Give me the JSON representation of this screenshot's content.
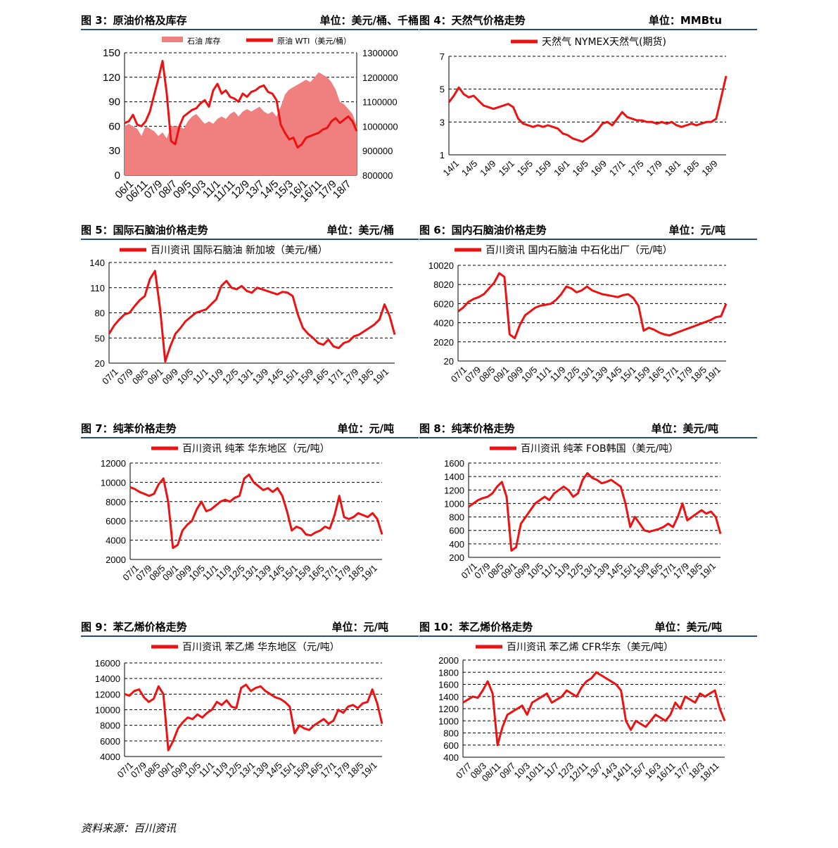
{
  "colors": {
    "series": "#ee1111",
    "area": "#f08080",
    "rule": "#1f4e79",
    "grid": "#000000"
  },
  "source_note": "资料来源：百川资讯",
  "panels": [
    {
      "title": "图 3：原油价格及库存",
      "unit": "单位：美元/桶、千桶"
    },
    {
      "title": "图 4：天然气价格走势",
      "unit": "单位：MMBtu"
    },
    {
      "title": "图 5：国际石脑油价格走势",
      "unit": "单位：美元/桶"
    },
    {
      "title": "图 6：国内石脑油价格走势",
      "unit": "单位：元/吨"
    },
    {
      "title": "图 7：纯苯价格走势",
      "unit": "单位：元/吨"
    },
    {
      "title": "图 8：纯苯价格走势",
      "unit": "单位：美元/吨"
    },
    {
      "title": "图 9：苯乙烯价格走势",
      "unit": "单位：元/吨"
    },
    {
      "title": "图 10：苯乙烯价格走势",
      "unit": "单位：美元/吨"
    }
  ],
  "chart_data": [
    {
      "type": "line",
      "panel": 0,
      "dual_axis": true,
      "grid": true,
      "legend_position": "top",
      "series": [
        {
          "name": "石油 库存",
          "type": "area",
          "axis": "right",
          "values": [
            1000000,
            1010000,
            1000000,
            990000,
            960000,
            1000000,
            990000,
            980000,
            960000,
            975000,
            950000,
            1000000,
            1000000,
            1000000,
            990000,
            1020000,
            1040000,
            1050000,
            1030000,
            1010000,
            1020000,
            1010000,
            1030000,
            1040000,
            1030000,
            1050000,
            1060000,
            1040000,
            1060000,
            1070000,
            1060000,
            1070000,
            1080000,
            1060000,
            1050000,
            1060000,
            1040000,
            1080000,
            1130000,
            1150000,
            1160000,
            1170000,
            1180000,
            1190000,
            1180000,
            1200000,
            1220000,
            1210000,
            1200000,
            1180000,
            1150000,
            1100000,
            1090000,
            1070000,
            1050000,
            1000000
          ]
        },
        {
          "name": "原油 WTI（美元/桶）",
          "type": "line",
          "axis": "left",
          "values": [
            64,
            66,
            74,
            62,
            60,
            66,
            78,
            98,
            118,
            140,
            100,
            42,
            38,
            60,
            72,
            76,
            80,
            82,
            88,
            92,
            84,
            104,
            112,
            100,
            104,
            96,
            94,
            90,
            100,
            96,
            102,
            104,
            108,
            110,
            102,
            100,
            92,
            62,
            52,
            44,
            46,
            34,
            38,
            46,
            48,
            50,
            52,
            56,
            58,
            66,
            70,
            64,
            68,
            72,
            66,
            54
          ]
        }
      ],
      "x_ticks": [
        "06/1",
        "06/11",
        "07/9",
        "08/7",
        "09/5",
        "10/3",
        "11/1",
        "11/11",
        "12/9",
        "13/7",
        "14/5",
        "15/3",
        "16/1",
        "16/11",
        "17/9",
        "18/7"
      ],
      "y_left": {
        "min": 0,
        "max": 150,
        "ticks": [
          "0",
          "30",
          "60",
          "90",
          "120",
          "150"
        ]
      },
      "y_right": {
        "min": 800000,
        "max": 1300000,
        "ticks": [
          "800000",
          "900000",
          "1000000",
          "1100000",
          "1200000",
          "1300000"
        ]
      }
    },
    {
      "type": "line",
      "panel": 1,
      "grid": true,
      "legend_position": "top",
      "series": [
        {
          "name": "天然气 NYMEX天然气(期货)",
          "values": [
            4.2,
            4.6,
            5.1,
            4.7,
            4.5,
            4.6,
            4.3,
            4.0,
            3.9,
            3.8,
            3.9,
            4.0,
            4.1,
            3.9,
            3.2,
            2.9,
            2.8,
            2.7,
            2.8,
            2.7,
            2.8,
            2.7,
            2.6,
            2.3,
            2.2,
            2.0,
            1.9,
            1.8,
            2.0,
            2.2,
            2.5,
            2.9,
            3.0,
            2.8,
            3.2,
            3.6,
            3.3,
            3.2,
            3.1,
            3.1,
            3.0,
            3.0,
            2.9,
            3.0,
            2.9,
            3.0,
            2.8,
            2.7,
            2.8,
            2.9,
            2.8,
            2.9,
            3.0,
            3.0,
            3.2,
            4.5,
            5.8
          ]
        }
      ],
      "x_ticks": [
        "14/1",
        "14/5",
        "14/9",
        "15/1",
        "15/5",
        "15/9",
        "16/1",
        "16/5",
        "16/9",
        "17/1",
        "17/5",
        "17/9",
        "18/1",
        "18/5",
        "18/9"
      ],
      "y": {
        "min": 1,
        "max": 7,
        "ticks": [
          "1",
          "3",
          "5",
          "7"
        ]
      }
    },
    {
      "type": "line",
      "panel": 2,
      "grid": true,
      "legend_position": "top",
      "series": [
        {
          "name": "百川资讯 国际石脑油 新加坡（美元/桶）",
          "values": [
            55,
            65,
            72,
            78,
            80,
            88,
            95,
            100,
            120,
            130,
            85,
            22,
            40,
            55,
            62,
            70,
            75,
            80,
            82,
            84,
            90,
            96,
            112,
            118,
            110,
            108,
            112,
            106,
            104,
            110,
            108,
            106,
            104,
            102,
            105,
            104,
            100,
            78,
            62,
            55,
            50,
            44,
            42,
            48,
            40,
            38,
            44,
            46,
            52,
            54,
            58,
            62,
            66,
            72,
            90,
            76,
            54
          ]
        }
      ],
      "x_ticks": [
        "07/1",
        "07/9",
        "08/5",
        "09/1",
        "09/9",
        "10/5",
        "11/1",
        "11/9",
        "12/5",
        "13/1",
        "13/9",
        "14/5",
        "15/1",
        "15/9",
        "16/5",
        "17/1",
        "17/9",
        "18/5",
        "19/1"
      ],
      "y": {
        "min": 20,
        "max": 140,
        "ticks": [
          "20",
          "50",
          "80",
          "110",
          "140"
        ]
      }
    },
    {
      "type": "line",
      "panel": 3,
      "grid": true,
      "legend_position": "top",
      "series": [
        {
          "name": "百川资讯 国内石脑油 中石化出厂（元/吨）",
          "values": [
            5200,
            5600,
            6200,
            6500,
            6700,
            7000,
            7600,
            8200,
            9200,
            8800,
            2800,
            2400,
            3800,
            4800,
            5200,
            5600,
            5800,
            5900,
            6000,
            6400,
            7000,
            7800,
            7600,
            7200,
            7400,
            7800,
            7400,
            7200,
            7000,
            6900,
            6800,
            6700,
            6900,
            7000,
            6600,
            5800,
            3200,
            3500,
            3300,
            3000,
            2800,
            2700,
            2900,
            3100,
            3300,
            3500,
            3700,
            3900,
            4100,
            4300,
            4600,
            4700,
            6000
          ]
        }
      ],
      "x_ticks": [
        "07/1",
        "07/9",
        "08/5",
        "09/1",
        "09/9",
        "10/5",
        "11/1",
        "11/9",
        "12/5",
        "13/1",
        "13/9",
        "14/5",
        "15/1",
        "15/9",
        "16/5",
        "17/1",
        "17/9",
        "18/5",
        "19/1"
      ],
      "y": {
        "min": 20,
        "max": 10020,
        "ticks": [
          "20",
          "2020",
          "4020",
          "6020",
          "8020",
          "10020"
        ]
      }
    },
    {
      "type": "line",
      "panel": 4,
      "grid": true,
      "legend_position": "top",
      "series": [
        {
          "name": "百川资讯 纯苯 华东地区（元/吨）",
          "values": [
            9500,
            9300,
            9000,
            8800,
            8600,
            8800,
            9800,
            10400,
            8000,
            3200,
            3500,
            5000,
            5600,
            6000,
            7200,
            8000,
            7000,
            7200,
            7600,
            8000,
            8200,
            8000,
            8400,
            8600,
            10400,
            10800,
            10000,
            9600,
            9200,
            9400,
            9000,
            9400,
            8600,
            7000,
            5000,
            5400,
            5200,
            4600,
            4500,
            4800,
            5000,
            5400,
            5200,
            6600,
            8600,
            6400,
            6200,
            6400,
            6800,
            6600,
            6400,
            6800,
            6200,
            4600
          ]
        }
      ],
      "x_ticks": [
        "07/1",
        "07/9",
        "08/5",
        "09/1",
        "09/9",
        "10/5",
        "11/1",
        "11/9",
        "12/5",
        "13/1",
        "13/9",
        "14/5",
        "15/1",
        "15/9",
        "16/5",
        "17/1",
        "17/9",
        "18/5",
        "19/1"
      ],
      "y": {
        "min": 2000,
        "max": 12000,
        "ticks": [
          "2000",
          "4000",
          "6000",
          "8000",
          "10000",
          "12000"
        ]
      }
    },
    {
      "type": "line",
      "panel": 5,
      "grid": true,
      "legend_position": "top",
      "series": [
        {
          "name": "百川资讯 纯苯 FOB韩国（美元/吨）",
          "values": [
            950,
            1000,
            1050,
            1080,
            1100,
            1150,
            1250,
            1320,
            1100,
            300,
            350,
            700,
            800,
            900,
            1000,
            1050,
            1100,
            1050,
            1150,
            1200,
            1250,
            1200,
            1100,
            1150,
            1350,
            1450,
            1380,
            1350,
            1300,
            1320,
            1350,
            1300,
            1250,
            1000,
            650,
            800,
            700,
            600,
            580,
            600,
            620,
            650,
            700,
            650,
            800,
            1000,
            750,
            800,
            850,
            900,
            850,
            880,
            800,
            550
          ]
        }
      ],
      "x_ticks": [
        "07/1",
        "07/9",
        "08/5",
        "09/1",
        "09/9",
        "10/5",
        "11/1",
        "11/9",
        "12/5",
        "13/1",
        "13/9",
        "14/5",
        "15/1",
        "15/9",
        "16/5",
        "17/1",
        "17/9",
        "18/5",
        "19/1"
      ],
      "y": {
        "min": 200,
        "max": 1600,
        "ticks": [
          "200",
          "400",
          "600",
          "800",
          "1000",
          "1200",
          "1400",
          "1600"
        ]
      }
    },
    {
      "type": "line",
      "panel": 6,
      "grid": true,
      "legend_position": "top",
      "series": [
        {
          "name": "百川资讯 苯乙烯 华东地区（元/吨）",
          "values": [
            12000,
            11800,
            12400,
            12600,
            11600,
            11000,
            11400,
            13000,
            12000,
            4800,
            6000,
            7600,
            8400,
            9000,
            8800,
            9400,
            9000,
            9600,
            10000,
            11000,
            10600,
            11200,
            10400,
            10200,
            12800,
            13200,
            12400,
            12800,
            13000,
            12400,
            12000,
            11600,
            11400,
            11000,
            10400,
            7000,
            8000,
            7600,
            7400,
            8000,
            8400,
            8800,
            8200,
            8600,
            10000,
            9600,
            10400,
            10600,
            10200,
            10800,
            11000,
            12600,
            10800,
            8200
          ]
        }
      ],
      "x_ticks": [
        "07/1",
        "07/9",
        "08/5",
        "09/1",
        "09/9",
        "10/5",
        "11/1",
        "11/9",
        "12/5",
        "13/1",
        "13/9",
        "14/5",
        "15/1",
        "15/9",
        "16/5",
        "17/1",
        "17/9",
        "18/5",
        "19/1"
      ],
      "y": {
        "min": 4000,
        "max": 16000,
        "ticks": [
          "4000",
          "6000",
          "8000",
          "10000",
          "12000",
          "14000",
          "16000"
        ]
      }
    },
    {
      "type": "line",
      "panel": 7,
      "grid": true,
      "legend_position": "top",
      "series": [
        {
          "name": "百川资讯 苯乙烯 CFR华东（美元/吨）",
          "values": [
            1300,
            1350,
            1400,
            1380,
            1500,
            1650,
            1450,
            600,
            900,
            1100,
            1150,
            1200,
            1250,
            1100,
            1300,
            1350,
            1400,
            1450,
            1300,
            1350,
            1400,
            1500,
            1450,
            1400,
            1550,
            1650,
            1700,
            1800,
            1750,
            1700,
            1650,
            1600,
            1500,
            1000,
            850,
            1000,
            950,
            900,
            1000,
            1100,
            1050,
            1000,
            1100,
            1300,
            1200,
            1400,
            1350,
            1300,
            1450,
            1400,
            1450,
            1500,
            1200,
            1000
          ]
        }
      ],
      "x_ticks": [
        "07/7",
        "08/3",
        "08/11",
        "09/7",
        "10/3",
        "10/11",
        "11/7",
        "12/3",
        "12/11",
        "13/7",
        "14/3",
        "14/11",
        "15/7",
        "16/3",
        "16/11",
        "17/7",
        "18/3",
        "18/11"
      ],
      "y": {
        "min": 400,
        "max": 2000,
        "ticks": [
          "400",
          "600",
          "800",
          "1000",
          "1200",
          "1400",
          "1600",
          "1800",
          "2000"
        ]
      }
    }
  ]
}
